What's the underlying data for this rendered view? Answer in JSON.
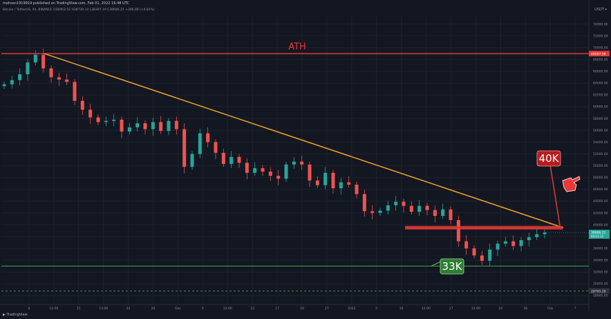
{
  "header": {
    "publisher_line": "mohsen1919919 published on TradingView.com, Feb 01, 2022 16:48 UTC",
    "symbol_line": "Bitcoin / TetherUS, 4h, BINANCE  O38463.52  H38730.14  L38387.19  C38686.21  +306.88 (+0.81%)",
    "currency": "USDT"
  },
  "footer": {
    "logo_text": "TradingView"
  },
  "chart_data": {
    "type": "candlestick",
    "title": "",
    "y_axis_ticks": [
      "74000.00",
      "72000.00",
      "70000.00",
      "68000.00",
      "66000.00",
      "64000.00",
      "62000.00",
      "60000.00",
      "58000.00",
      "56000.00",
      "54000.00",
      "52000.00",
      "50000.00",
      "48000.00",
      "46000.00",
      "44000.00",
      "42000.00",
      "40000.00",
      "38000.00",
      "36000.00",
      "34000.00",
      "32000.00",
      "30000.00",
      "28000.00"
    ],
    "x_axis_ticks": [
      "8",
      "12:00",
      "15",
      "13:00",
      "22",
      "26",
      "Dec",
      "6",
      "12:00",
      "13",
      "17",
      "20",
      "27",
      "2022",
      "5",
      "10",
      "12:00",
      "17",
      "12:00",
      "24",
      "28",
      "Feb",
      "7"
    ],
    "ylim": [
      26500,
      75500
    ],
    "annotations": {
      "ath_label": "ATH",
      "ath_price": 69000,
      "ath_price_label": "69007.56",
      "resistance_label": "40K",
      "resistance_price": 39500,
      "support_label": "33K",
      "support_price": 33000,
      "current_price_label": "38686.21",
      "current_price_sub": "03:11:13",
      "bottom_price_label": "28795.28",
      "trendline": {
        "from_price": 69000,
        "to_price": 39500
      }
    },
    "series_close_approx": [
      63800,
      64500,
      65500,
      67500,
      68800,
      66500,
      65000,
      64600,
      64200,
      61000,
      59500,
      58200,
      57400,
      57600,
      57800,
      55800,
      56500,
      57200,
      56200,
      57400,
      55900,
      57600,
      56200,
      49800,
      52000,
      55500,
      54000,
      52200,
      50300,
      51500,
      50500,
      48800,
      49600,
      49000,
      48300,
      47800,
      50200,
      50700,
      50200,
      47500,
      46700,
      48800,
      46200,
      47200,
      46800,
      45200,
      42300,
      42000,
      42400,
      43300,
      43900,
      43200,
      42200,
      43200,
      42500,
      41500,
      42600,
      40800,
      37200,
      36000,
      34800,
      33900,
      35800,
      36800,
      37200,
      36400,
      37400,
      37900,
      38400,
      38700
    ],
    "colors": {
      "up": "#26a69a",
      "down": "#ef5350",
      "ath": "#e53935",
      "trend": "#f5a623",
      "support": "#43a047",
      "background": "#131722"
    }
  }
}
